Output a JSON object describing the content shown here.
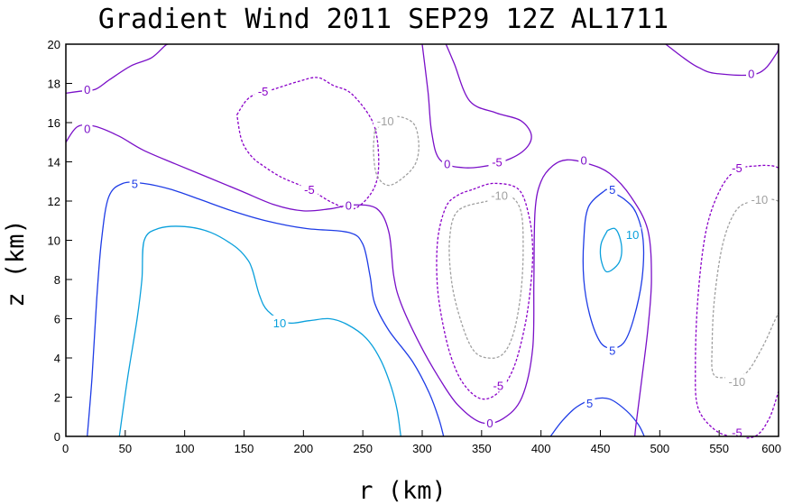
{
  "chart_data": {
    "type": "contour",
    "title": "Gradient Wind 2011 SEP29 12Z  AL1711",
    "xlabel": "r (km)",
    "ylabel": "z (km)",
    "xlim": [
      0,
      600
    ],
    "ylim": [
      0,
      20
    ],
    "xticks": [
      "0",
      "50",
      "100",
      "150",
      "200",
      "250",
      "300",
      "350",
      "400",
      "450",
      "500",
      "550",
      "600"
    ],
    "yticks": [
      "0",
      "2",
      "4",
      "6",
      "8",
      "10",
      "12",
      "14",
      "16",
      "18",
      "20"
    ],
    "grid": false,
    "levels": [
      {
        "value": -10,
        "color": "#a0a0a0",
        "dashed": true
      },
      {
        "value": -5,
        "color": "#8a00c8",
        "dashed": true
      },
      {
        "value": 0,
        "color": "#7a10c8",
        "dashed": false
      },
      {
        "value": 5,
        "color": "#1e3ce6",
        "dashed": false
      },
      {
        "value": 10,
        "color": "#0aa0dc",
        "dashed": false
      }
    ],
    "contours": [
      {
        "level": 10,
        "points": [
          [
            45,
            0
          ],
          [
            52,
            3
          ],
          [
            60,
            6
          ],
          [
            64,
            8
          ],
          [
            66,
            10
          ],
          [
            78,
            10.6
          ],
          [
            100,
            10.7
          ],
          [
            122,
            10.4
          ],
          [
            142,
            9.7
          ],
          [
            152,
            9.1
          ],
          [
            157,
            8.5
          ],
          [
            163,
            7.2
          ],
          [
            170,
            6.4
          ],
          [
            186,
            5.8
          ],
          [
            205,
            5.9
          ],
          [
            222,
            6.0
          ],
          [
            237,
            5.7
          ],
          [
            253,
            5.0
          ],
          [
            265,
            3.9
          ],
          [
            274,
            2.5
          ],
          [
            279,
            1.3
          ],
          [
            282,
            0
          ]
        ]
      },
      {
        "level": 10,
        "points": [
          [
            456,
            10.5
          ],
          [
            462,
            10.6
          ],
          [
            466,
            10.2
          ],
          [
            468,
            9.5
          ],
          [
            466,
            8.9
          ],
          [
            460,
            8.5
          ],
          [
            455,
            8.4
          ],
          [
            452,
            8.7
          ],
          [
            450,
            9.3
          ],
          [
            451,
            9.9
          ],
          [
            456,
            10.5
          ]
        ]
      },
      {
        "level": 5,
        "points": [
          [
            18,
            0
          ],
          [
            22,
            3
          ],
          [
            26,
            7
          ],
          [
            30,
            10
          ],
          [
            36,
            12.2
          ],
          [
            48,
            12.9
          ],
          [
            65,
            12.9
          ],
          [
            88,
            12.6
          ],
          [
            112,
            12.1
          ],
          [
            140,
            11.5
          ],
          [
            168,
            11.0
          ],
          [
            202,
            10.6
          ],
          [
            238,
            10.4
          ],
          [
            250,
            9.8
          ],
          [
            256,
            8.2
          ],
          [
            260,
            6.8
          ],
          [
            272,
            5.4
          ],
          [
            292,
            3.8
          ],
          [
            306,
            2.2
          ],
          [
            314,
            0.9
          ],
          [
            318,
            0
          ]
        ]
      },
      {
        "level": 5,
        "points": [
          [
            455,
            12.6
          ],
          [
            470,
            12.1
          ],
          [
            480,
            11.4
          ],
          [
            486,
            10.0
          ],
          [
            485,
            8.0
          ],
          [
            478,
            6.0
          ],
          [
            470,
            4.8
          ],
          [
            460,
            4.5
          ],
          [
            450,
            4.8
          ],
          [
            441,
            6.2
          ],
          [
            436,
            8.0
          ],
          [
            436,
            10.0
          ],
          [
            440,
            11.7
          ],
          [
            455,
            12.6
          ]
        ]
      },
      {
        "level": 5,
        "points": [
          [
            408,
            0
          ],
          [
            418,
            0.8
          ],
          [
            430,
            1.5
          ],
          [
            444,
            1.9
          ],
          [
            458,
            1.9
          ],
          [
            472,
            1.3
          ],
          [
            482,
            0.6
          ],
          [
            487,
            0
          ]
        ]
      },
      {
        "level": 0,
        "points": [
          [
            0,
            17.5
          ],
          [
            12,
            17.6
          ],
          [
            25,
            17.7
          ],
          [
            37,
            18.2
          ],
          [
            55,
            18.9
          ],
          [
            72,
            19.3
          ],
          [
            83,
            19.9
          ],
          [
            86,
            20
          ]
        ]
      },
      {
        "level": 0,
        "points": [
          [
            320,
            20
          ],
          [
            327,
            19
          ],
          [
            340,
            17.1
          ],
          [
            362,
            16.5
          ],
          [
            383,
            16.1
          ],
          [
            392,
            15.3
          ],
          [
            384,
            14.5
          ],
          [
            362,
            13.9
          ],
          [
            335,
            13.7
          ],
          [
            315,
            14.1
          ],
          [
            308,
            15.5
          ],
          [
            305,
            17.5
          ],
          [
            300,
            20
          ]
        ]
      },
      {
        "level": 0,
        "points": [
          [
            0,
            15
          ],
          [
            10,
            15.8
          ],
          [
            25,
            15.8
          ],
          [
            45,
            15.3
          ],
          [
            65,
            14.6
          ],
          [
            92,
            13.9
          ],
          [
            120,
            13.2
          ],
          [
            148,
            12.5
          ],
          [
            176,
            11.8
          ],
          [
            200,
            11.5
          ],
          [
            222,
            11.6
          ],
          [
            242,
            11.8
          ],
          [
            262,
            11.6
          ],
          [
            272,
            10.4
          ],
          [
            276,
            8.2
          ],
          [
            282,
            6.8
          ],
          [
            298,
            4.7
          ],
          [
            314,
            3.0
          ],
          [
            330,
            1.6
          ],
          [
            350,
            0.7
          ],
          [
            368,
            0.9
          ],
          [
            384,
            2.0
          ],
          [
            393,
            4.5
          ],
          [
            394,
            8.0
          ],
          [
            395,
            11.5
          ],
          [
            400,
            13.0
          ],
          [
            410,
            13.8
          ],
          [
            422,
            14.1
          ],
          [
            440,
            13.9
          ],
          [
            458,
            13.4
          ],
          [
            476,
            12.2
          ],
          [
            490,
            10.5
          ],
          [
            493,
            8.0
          ],
          [
            490,
            5.5
          ],
          [
            485,
            3.0
          ],
          [
            480,
            0.6
          ],
          [
            479,
            0
          ]
        ]
      },
      {
        "level": 0,
        "points": [
          [
            600,
            20
          ],
          [
            598,
            19.5
          ],
          [
            582,
            18.5
          ],
          [
            548,
            18.5
          ],
          [
            533,
            18.8
          ],
          [
            520,
            19.3
          ],
          [
            505,
            20
          ]
        ]
      },
      {
        "level": -5,
        "points": [
          [
            144,
            16.4
          ],
          [
            155,
            17.3
          ],
          [
            175,
            17.7
          ],
          [
            196,
            18.1
          ],
          [
            212,
            18.3
          ],
          [
            225,
            17.9
          ],
          [
            240,
            17.5
          ],
          [
            256,
            16.3
          ],
          [
            262,
            15.2
          ],
          [
            263,
            13.5
          ],
          [
            257,
            12.4
          ],
          [
            242,
            11.6
          ],
          [
            225,
            11.9
          ],
          [
            205,
            12.6
          ],
          [
            182,
            13.2
          ],
          [
            166,
            13.8
          ],
          [
            156,
            14.3
          ],
          [
            148,
            15.1
          ],
          [
            144,
            16.4
          ]
        ]
      },
      {
        "level": -5,
        "points": [
          [
            343,
            12.6
          ],
          [
            360,
            12.9
          ],
          [
            381,
            12.6
          ],
          [
            390,
            11.2
          ],
          [
            393,
            9.5
          ],
          [
            391,
            7.5
          ],
          [
            386,
            5.5
          ],
          [
            377,
            3.5
          ],
          [
            365,
            2.3
          ],
          [
            352,
            1.9
          ],
          [
            340,
            2.3
          ],
          [
            329,
            3.3
          ],
          [
            320,
            5.0
          ],
          [
            313,
            7.5
          ],
          [
            313,
            10.0
          ],
          [
            320,
            11.7
          ],
          [
            330,
            12.3
          ],
          [
            343,
            12.6
          ]
        ]
      },
      {
        "level": -5,
        "points": [
          [
            600,
            13.7
          ],
          [
            594,
            13.8
          ],
          [
            583,
            13.8
          ],
          [
            565,
            13.6
          ],
          [
            551,
            12.6
          ],
          [
            539,
            10.5
          ],
          [
            532,
            7.0
          ],
          [
            530,
            3.5
          ],
          [
            532,
            1.5
          ],
          [
            545,
            0.4
          ],
          [
            560,
            0
          ],
          [
            580,
            0
          ],
          [
            592,
            0.9
          ],
          [
            600,
            2.3
          ]
        ]
      },
      {
        "level": -10,
        "points": [
          [
            260,
            15.6
          ],
          [
            275,
            16.3
          ],
          [
            292,
            16.0
          ],
          [
            297,
            15.0
          ],
          [
            295,
            14.0
          ],
          [
            286,
            13.3
          ],
          [
            272,
            12.8
          ],
          [
            262,
            13.3
          ],
          [
            259,
            14.5
          ],
          [
            260,
            15.6
          ]
        ]
      },
      {
        "level": -10,
        "points": [
          [
            355,
            12.0
          ],
          [
            372,
            12.3
          ],
          [
            383,
            11.5
          ],
          [
            385,
            9.5
          ],
          [
            383,
            7.3
          ],
          [
            377,
            5.3
          ],
          [
            368,
            4.2
          ],
          [
            355,
            4.0
          ],
          [
            343,
            4.4
          ],
          [
            333,
            5.8
          ],
          [
            325,
            7.8
          ],
          [
            323,
            10.0
          ],
          [
            330,
            11.5
          ],
          [
            355,
            12.0
          ]
        ]
      },
      {
        "level": -10,
        "points": [
          [
            600,
            12.0
          ],
          [
            592,
            12.1
          ],
          [
            578,
            12.0
          ],
          [
            564,
            11.5
          ],
          [
            553,
            9.8
          ],
          [
            546,
            7.0
          ],
          [
            544,
            4.5
          ],
          [
            545,
            3.2
          ],
          [
            555,
            3.0
          ],
          [
            572,
            3.2
          ],
          [
            586,
            4.5
          ],
          [
            596,
            5.8
          ],
          [
            600,
            6.3
          ]
        ]
      }
    ],
    "annotations": [
      {
        "text": "0",
        "x": 18,
        "y": 17.7,
        "level": 0
      },
      {
        "text": "0",
        "x": 18,
        "y": 15.7,
        "level": 0
      },
      {
        "text": "0",
        "x": 321,
        "y": 13.9,
        "level": 0
      },
      {
        "text": "0",
        "x": 238,
        "y": 11.8,
        "level": 0
      },
      {
        "text": "0",
        "x": 436,
        "y": 14.1,
        "level": 0
      },
      {
        "text": "0",
        "x": 357,
        "y": 0.7,
        "level": 0
      },
      {
        "text": "0",
        "x": 577,
        "y": 18.5,
        "level": 0
      },
      {
        "text": "5",
        "x": 58,
        "y": 12.9,
        "level": 5
      },
      {
        "text": "5",
        "x": 460,
        "y": 12.6,
        "level": 5
      },
      {
        "text": "5",
        "x": 460,
        "y": 4.4,
        "level": 5
      },
      {
        "text": "5",
        "x": 441,
        "y": 1.7,
        "level": 5
      },
      {
        "text": "10",
        "x": 180,
        "y": 5.8,
        "level": 10
      },
      {
        "text": "10",
        "x": 477,
        "y": 10.3,
        "level": 10
      },
      {
        "text": "-5",
        "x": 166,
        "y": 17.6,
        "level": -5
      },
      {
        "text": "-5",
        "x": 205,
        "y": 12.6,
        "level": -5
      },
      {
        "text": "-5",
        "x": 363,
        "y": 14.0,
        "level": -5
      },
      {
        "text": "-5",
        "x": 364,
        "y": 2.6,
        "level": -5
      },
      {
        "text": "-5",
        "x": 565,
        "y": 13.7,
        "level": -5
      },
      {
        "text": "-5",
        "x": 565,
        "y": 0.2,
        "level": -5
      },
      {
        "text": "-10",
        "x": 269,
        "y": 16.1,
        "level": -10
      },
      {
        "text": "-10",
        "x": 365,
        "y": 12.3,
        "level": -10
      },
      {
        "text": "-10",
        "x": 584,
        "y": 12.1,
        "level": -10
      },
      {
        "text": "-10",
        "x": 565,
        "y": 2.8,
        "level": -10
      }
    ]
  }
}
